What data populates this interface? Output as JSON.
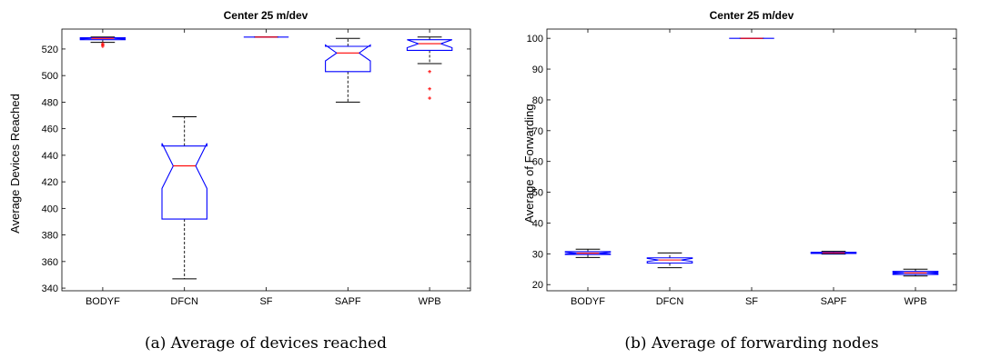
{
  "chart_data": [
    {
      "type": "boxplot",
      "title": "Center 25 m/dev",
      "xlabel": "",
      "ylabel": "Average Devices Reached",
      "ylim": [
        338,
        535
      ],
      "yticks": [
        340,
        360,
        380,
        400,
        420,
        440,
        460,
        480,
        500,
        520
      ],
      "notched": true,
      "categories": [
        "BODYF",
        "DFCN",
        "SF",
        "SAPF",
        "WPB"
      ],
      "boxes": [
        {
          "label": "BODYF",
          "whisker_low": 525,
          "q1": 527,
          "median": 528,
          "q3": 528.5,
          "whisker_high": 529,
          "notch_low": 527.7,
          "notch_high": 528.3,
          "outliers": [
            522,
            523,
            524
          ]
        },
        {
          "label": "DFCN",
          "whisker_low": 347,
          "q1": 392,
          "median": 432,
          "q3": 447,
          "whisker_high": 469,
          "notch_low": 415,
          "notch_high": 449,
          "outliers": []
        },
        {
          "label": "SF",
          "whisker_low": 529,
          "q1": 529,
          "median": 529,
          "q3": 529,
          "whisker_high": 529,
          "notch_low": 529,
          "notch_high": 529,
          "outliers": []
        },
        {
          "label": "SAPF",
          "whisker_low": 480,
          "q1": 503,
          "median": 517,
          "q3": 522,
          "whisker_high": 528,
          "notch_low": 511,
          "notch_high": 523,
          "outliers": []
        },
        {
          "label": "WPB",
          "whisker_low": 509,
          "q1": 519,
          "median": 524,
          "q3": 527,
          "whisker_high": 529,
          "notch_low": 521,
          "notch_high": 527,
          "outliers": [
            503,
            490,
            483
          ]
        }
      ],
      "caption": "(a) Average of devices reached"
    },
    {
      "type": "boxplot",
      "title": "Center 25 m/dev",
      "xlabel": "",
      "ylabel": "Average of Forwarding",
      "ylim": [
        18,
        103
      ],
      "yticks": [
        20,
        30,
        40,
        50,
        60,
        70,
        80,
        90,
        100
      ],
      "notched": true,
      "categories": [
        "BODYF",
        "DFCN",
        "SF",
        "SAPF",
        "WPB"
      ],
      "boxes": [
        {
          "label": "BODYF",
          "whisker_low": 28.8,
          "q1": 29.8,
          "median": 30.2,
          "q3": 30.7,
          "whisker_high": 31.5,
          "notch_low": 29.9,
          "notch_high": 30.5,
          "outliers": []
        },
        {
          "label": "DFCN",
          "whisker_low": 25.5,
          "q1": 27.0,
          "median": 28.0,
          "q3": 28.7,
          "whisker_high": 30.3,
          "notch_low": 27.5,
          "notch_high": 28.5,
          "outliers": []
        },
        {
          "label": "SF",
          "whisker_low": 100,
          "q1": 100,
          "median": 100,
          "q3": 100,
          "whisker_high": 100,
          "notch_low": 100,
          "notch_high": 100,
          "outliers": []
        },
        {
          "label": "SAPF",
          "whisker_low": 29.9,
          "q1": 30.1,
          "median": 30.3,
          "q3": 30.5,
          "whisker_high": 30.8,
          "notch_low": 30.2,
          "notch_high": 30.4,
          "outliers": []
        },
        {
          "label": "WPB",
          "whisker_low": 22.8,
          "q1": 23.3,
          "median": 23.8,
          "q3": 24.3,
          "whisker_high": 25.0,
          "notch_low": 23.6,
          "notch_high": 24.0,
          "outliers": []
        }
      ],
      "caption": "(b) Average of forwarding nodes"
    }
  ],
  "colors": {
    "box": "#0000ff",
    "median": "#ff0000",
    "whisker": "#000000",
    "outlier": "#ff0000",
    "axis": "#000000"
  }
}
